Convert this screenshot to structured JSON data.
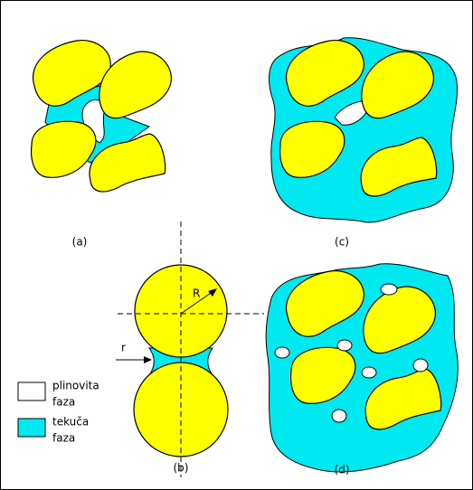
{
  "panels": {
    "a": {
      "label": "(a)"
    },
    "b": {
      "label": "(b)",
      "radius_label": "R",
      "neck_label": "r"
    },
    "c": {
      "label": "(c)"
    },
    "d": {
      "label": "(d)"
    }
  },
  "legend": [
    {
      "lines": [
        "plinovita",
        "faza"
      ]
    },
    {
      "lines": [
        "tekuča",
        "faza"
      ]
    }
  ]
}
